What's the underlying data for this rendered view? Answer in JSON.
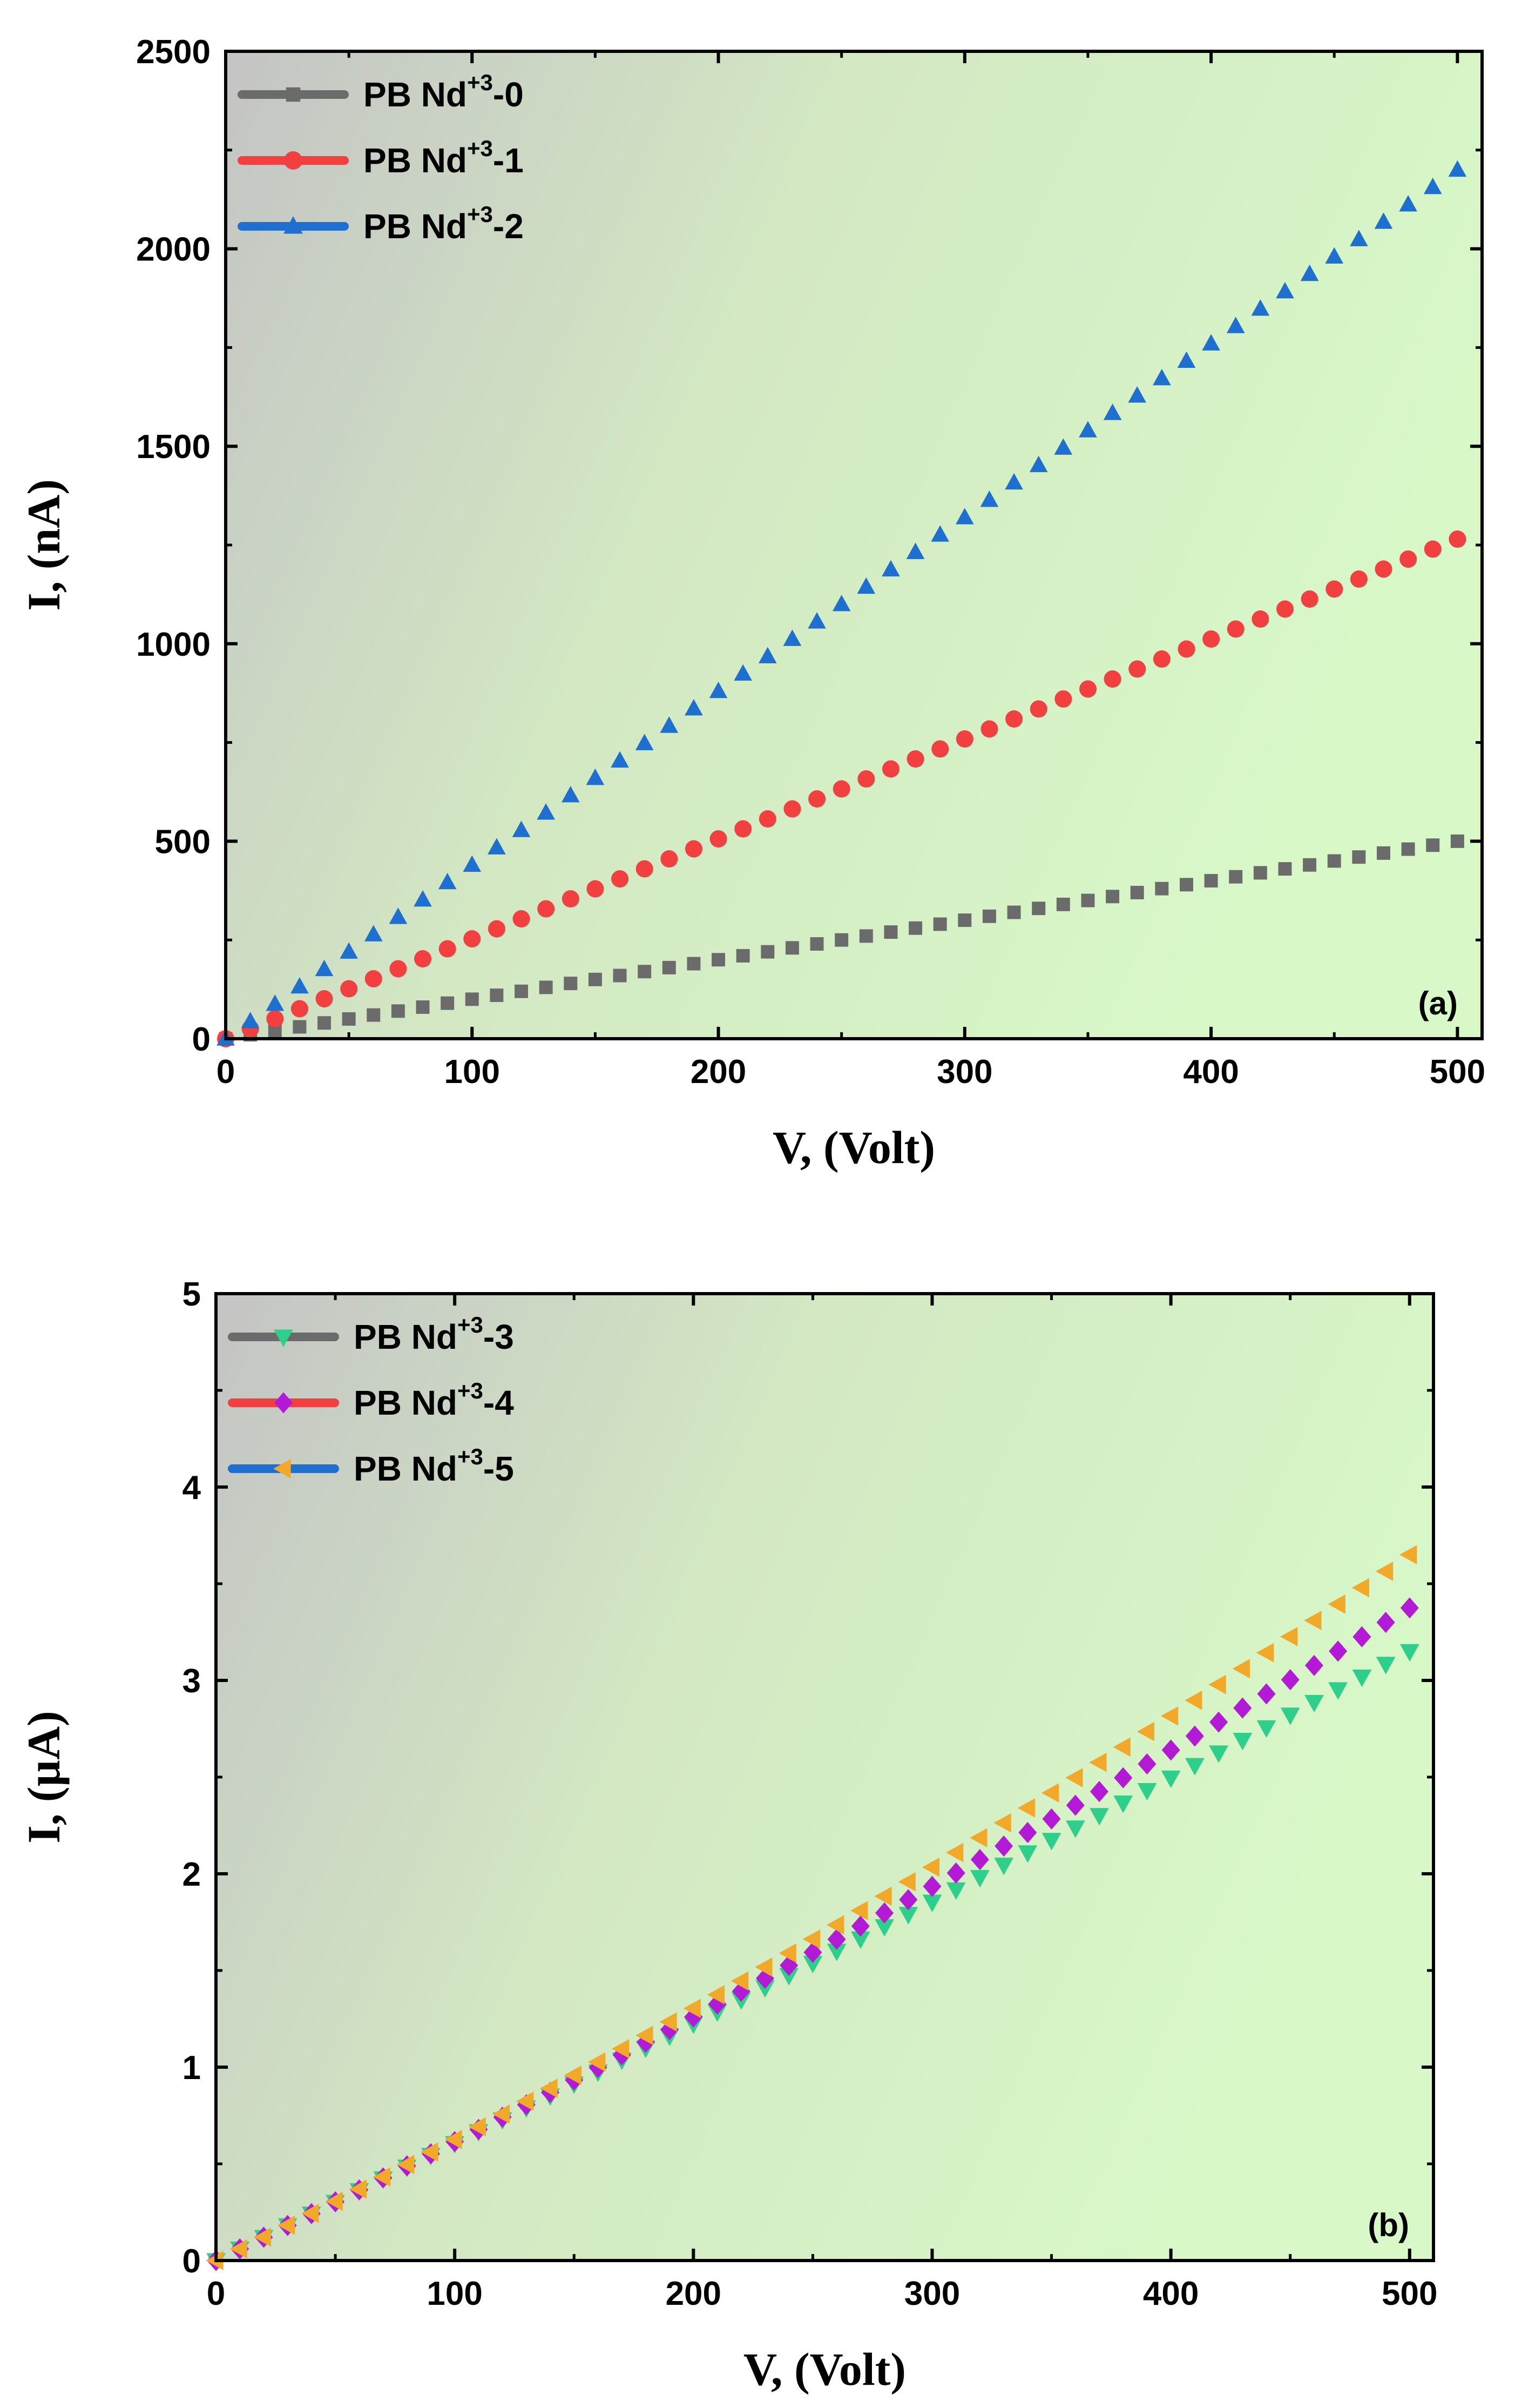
{
  "chart_data": [
    {
      "type": "scatter",
      "panel_label": "(a)",
      "xlabel": "V, (Volt)",
      "ylabel": "I, (nA)",
      "xlim": [
        0,
        510
      ],
      "ylim": [
        0,
        2500
      ],
      "xticks": [
        0,
        100,
        200,
        300,
        400,
        500
      ],
      "yticks": [
        0,
        500,
        1000,
        1500,
        2000,
        2500
      ],
      "x_start": 0,
      "x_step": 10,
      "x_count": 51,
      "legend_position": "top-left",
      "background": "gradient grey (top-left) to light green",
      "series": [
        {
          "name_base": "PB Nd",
          "name_sup": "+3",
          "name_suffix": "-0",
          "color": "#6b6b6b",
          "line_color": "#6b6b6b",
          "marker": "square",
          "slope": 1.0,
          "curvature": 0
        },
        {
          "name_base": "PB Nd",
          "name_sup": "+3",
          "name_suffix": "-1",
          "color": "#f24040",
          "line_color": "#f24040",
          "marker": "circle",
          "slope": 2.53,
          "curvature": 0
        },
        {
          "name_base": "PB Nd",
          "name_sup": "+3",
          "name_suffix": "-2",
          "color": "#1e6fd0",
          "line_color": "#1e6fd0",
          "marker": "triangle-up",
          "slope": 4.4,
          "curvature": 0
        }
      ]
    },
    {
      "type": "scatter",
      "panel_label": "(b)",
      "xlabel": "V, (Volt)",
      "ylabel": "I, (µA)",
      "xlim": [
        0,
        510
      ],
      "ylim": [
        0,
        5
      ],
      "xticks": [
        0,
        100,
        200,
        300,
        400,
        500
      ],
      "yticks": [
        0,
        1,
        2,
        3,
        4,
        5
      ],
      "x_start": 0,
      "x_step": 10,
      "x_count": 51,
      "legend_position": "top-left",
      "background": "gradient grey (top-left) to light green",
      "series": [
        {
          "name_base": "PB Nd",
          "name_sup": "+3",
          "name_suffix": "-3",
          "color": "#2ecf8a",
          "line_color": "#6b6b6b",
          "marker": "triangle-down",
          "slope": 0.006,
          "curvature": 6e-07
        },
        {
          "name_base": "PB Nd",
          "name_sup": "+3",
          "name_suffix": "-4",
          "color": "#b21ad6",
          "line_color": "#f24040",
          "marker": "diamond",
          "slope": 0.006,
          "curvature": 1.5e-06
        },
        {
          "name_base": "PB Nd",
          "name_sup": "+3",
          "name_suffix": "-5",
          "color": "#f2a92a",
          "line_color": "#1e6fd0",
          "marker": "triangle-left",
          "slope": 0.006,
          "curvature": 2.6e-06
        }
      ]
    }
  ]
}
